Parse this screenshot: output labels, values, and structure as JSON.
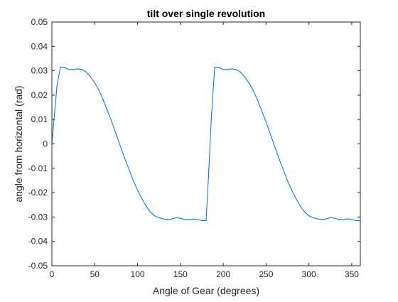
{
  "chart_data": {
    "type": "line",
    "title": "tilt over single revolution",
    "xlabel": "Angle of Gear (degrees)",
    "ylabel": "angle from horizontal (rad)",
    "xlim": [
      0,
      360
    ],
    "ylim": [
      -0.05,
      0.05
    ],
    "xticks": [
      0,
      50,
      100,
      150,
      200,
      250,
      300,
      350
    ],
    "xtick_labels": [
      "0",
      "50",
      "100",
      "150",
      "200",
      "250",
      "300",
      "350"
    ],
    "yticks": [
      0.05,
      0.04,
      0.03,
      0.02,
      0.01,
      0,
      -0.01,
      -0.02,
      -0.03,
      -0.04,
      -0.05
    ],
    "ytick_labels": [
      "0.05",
      "0.04",
      "0.03",
      "0.02",
      "0.01",
      "0",
      "-0.01",
      "-0.02",
      "-0.03",
      "-0.04",
      "-0.05"
    ],
    "grid": false,
    "line_color": "#0072BD",
    "series": [
      {
        "x": [
          0,
          3,
          6,
          10,
          15,
          20,
          25,
          30,
          35,
          40,
          45,
          50,
          55,
          60,
          65,
          70,
          75,
          80,
          85,
          90,
          95,
          100,
          105,
          110,
          115,
          120,
          125,
          130,
          135,
          140,
          145,
          150,
          155,
          160,
          165,
          170,
          175,
          180,
          183,
          186,
          190,
          195,
          200,
          205,
          210,
          215,
          220,
          225,
          230,
          235,
          240,
          245,
          250,
          255,
          260,
          265,
          270,
          275,
          280,
          285,
          290,
          295,
          300,
          305,
          310,
          315,
          320,
          325,
          330,
          335,
          340,
          345,
          350,
          355,
          360
        ],
        "y": [
          0,
          0.012,
          0.024,
          0.0315,
          0.0313,
          0.0305,
          0.0305,
          0.0308,
          0.0305,
          0.0295,
          0.0275,
          0.025,
          0.022,
          0.018,
          0.0135,
          0.009,
          0.004,
          -0.001,
          -0.006,
          -0.0105,
          -0.015,
          -0.019,
          -0.0225,
          -0.0255,
          -0.028,
          -0.0295,
          -0.0303,
          -0.0308,
          -0.031,
          -0.0308,
          -0.0303,
          -0.0305,
          -0.031,
          -0.031,
          -0.0308,
          -0.031,
          -0.0315,
          -0.0315,
          -0.012,
          0.01,
          0.0315,
          0.0313,
          0.0305,
          0.0305,
          0.0308,
          0.0305,
          0.0295,
          0.0275,
          0.025,
          0.022,
          0.018,
          0.0135,
          0.009,
          0.004,
          -0.001,
          -0.006,
          -0.0105,
          -0.015,
          -0.019,
          -0.0225,
          -0.0255,
          -0.028,
          -0.0295,
          -0.0303,
          -0.0308,
          -0.031,
          -0.0308,
          -0.0303,
          -0.0305,
          -0.031,
          -0.031,
          -0.0308,
          -0.031,
          -0.0315,
          -0.0315
        ]
      }
    ]
  }
}
